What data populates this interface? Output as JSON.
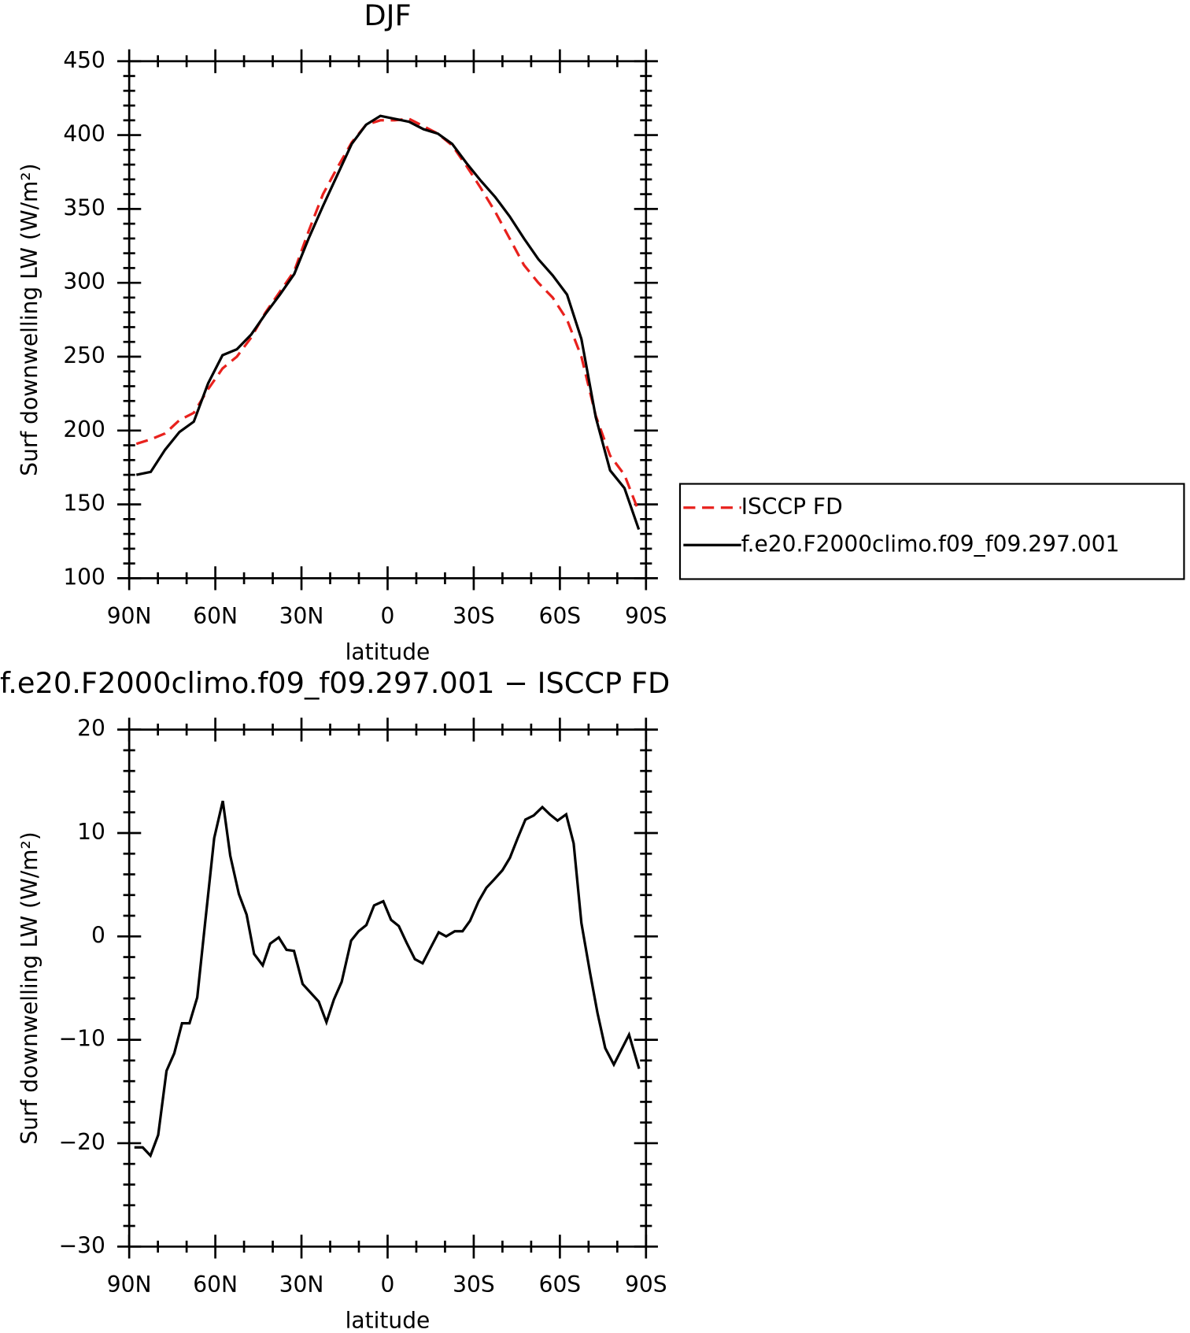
{
  "chart_data": [
    {
      "type": "line",
      "title": "DJF",
      "xlabel": "latitude",
      "ylabel": "Surf downwelling LW (W/m²)",
      "x": [
        87.5,
        82.5,
        77.5,
        72.5,
        67.5,
        62.5,
        57.5,
        52.5,
        47.5,
        42.5,
        37.5,
        32.5,
        27.5,
        22.5,
        17.5,
        12.5,
        7.5,
        2.5,
        -2.5,
        -7.5,
        -12.5,
        -17.5,
        -22.5,
        -27.5,
        -32.5,
        -37.5,
        -42.5,
        -47.5,
        -52.5,
        -57.5,
        -62.5,
        -67.5,
        -72.5,
        -77.5,
        -82.5,
        -87.5
      ],
      "series": [
        {
          "name": "ISCCP FD",
          "color": "#e8211d",
          "dashed": true,
          "values": [
            191,
            194,
            198,
            207,
            212,
            228,
            242,
            250,
            263,
            280,
            294,
            308,
            335,
            360,
            378,
            395,
            407,
            410,
            410,
            411,
            406,
            401,
            393,
            379,
            364,
            348,
            330,
            312,
            300,
            290,
            275,
            250,
            210,
            183,
            170,
            145
          ]
        },
        {
          "name": "f.e20.F2000climo.f09_f09.297.001",
          "color": "#000000",
          "dashed": false,
          "values": [
            170,
            172,
            187,
            199,
            206,
            232,
            251,
            255,
            265,
            279,
            292,
            306,
            330,
            352,
            373,
            394,
            407,
            413,
            411,
            409,
            404,
            401,
            394,
            381,
            369,
            358,
            345,
            330,
            316,
            305,
            292,
            262,
            209,
            173,
            161,
            133
          ]
        }
      ],
      "xlim": [
        90,
        -90
      ],
      "xticks": [
        {
          "value": 90,
          "label": "90N"
        },
        {
          "value": 60,
          "label": "60N"
        },
        {
          "value": 30,
          "label": "30N"
        },
        0,
        {
          "value": -30,
          "label": "30S"
        },
        {
          "value": -60,
          "label": "60S"
        },
        {
          "value": -90,
          "label": "90S"
        }
      ],
      "ylim": [
        100,
        450
      ],
      "yticks": [
        100,
        150,
        200,
        250,
        300,
        350,
        400,
        450
      ],
      "legend": "right"
    },
    {
      "type": "line",
      "title": "f.e20.F2000climo.f09_f09.297.001 − ISCCP FD",
      "xlabel": "latitude",
      "ylabel": "Surf downwelling LW (W/m²)",
      "x": [
        88.2,
        85.3,
        82.6,
        79.9,
        77,
        74.3,
        71.6,
        69,
        66.3,
        63.6,
        60.4,
        57.4,
        54.8,
        51.8,
        49.1,
        46.5,
        43.5,
        40.9,
        37.9,
        35.2,
        32.6,
        29.6,
        24,
        21.3,
        18.7,
        16,
        12.7,
        10.1,
        7.4,
        4.7,
        1.5,
        -1.2,
        -3.9,
        -6.6,
        -9.5,
        -12.2,
        -14.8,
        -17.8,
        -20.4,
        -23.4,
        -26.1,
        -28.7,
        -31.7,
        -34.4,
        -37.1,
        -40,
        -42.6,
        -45.3,
        -48,
        -50.9,
        -53.9,
        -56.5,
        -59.2,
        -62.2,
        -64.8,
        -67.5,
        -70.5,
        -73.1,
        -75.8,
        -78.8,
        -84.1,
        -87.6
      ],
      "series": [
        {
          "name": "f.e20.F2000climo.f09_f09.297.001 − ISCCP FD",
          "color": "#000000",
          "dashed": false,
          "values": [
            -20.4,
            -20.4,
            -21.2,
            -19.2,
            -13,
            -11.3,
            -8.4,
            -8.4,
            -5.9,
            1.2,
            9.5,
            13.1,
            7.8,
            4.1,
            2.1,
            -1.7,
            -2.8,
            -0.7,
            -0.1,
            -1.3,
            -1.4,
            -4.6,
            -6.3,
            -8.3,
            -6.1,
            -4.4,
            -0.4,
            0.5,
            1.1,
            3,
            3.4,
            1.6,
            1,
            -0.6,
            -2.2,
            -2.6,
            -1.2,
            0.4,
            0,
            0.5,
            0.5,
            1.5,
            3.4,
            4.7,
            5.5,
            6.4,
            7.6,
            9.5,
            11.3,
            11.7,
            12.5,
            11.8,
            11.2,
            11.8,
            9,
            1.3,
            -3.5,
            -7.4,
            -10.8,
            -12.4,
            -9.5,
            -12.8
          ]
        }
      ],
      "xlim": [
        90,
        -90
      ],
      "xticks": [
        {
          "value": 90,
          "label": "90N"
        },
        {
          "value": 60,
          "label": "60N"
        },
        {
          "value": 30,
          "label": "30N"
        },
        0,
        {
          "value": -30,
          "label": "30S"
        },
        {
          "value": -60,
          "label": "60S"
        },
        {
          "value": -90,
          "label": "90S"
        }
      ],
      "ylim": [
        -30,
        20
      ],
      "yticks": [
        {
          "value": -30,
          "label": "−30"
        },
        {
          "value": -20,
          "label": "−20"
        },
        {
          "value": -10,
          "label": "−10"
        },
        0,
        10,
        20
      ]
    }
  ]
}
